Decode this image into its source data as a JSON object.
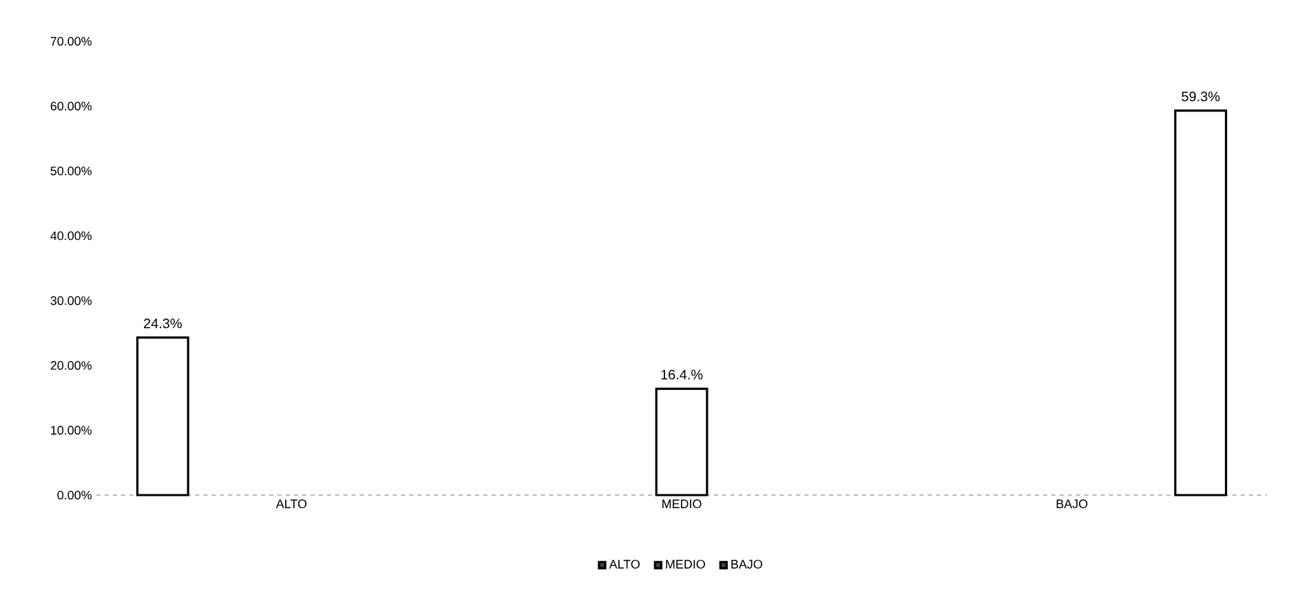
{
  "chart_data": {
    "type": "bar",
    "categories": [
      "ALTO",
      "MEDIO",
      "BAJO"
    ],
    "series": [
      {
        "name": "ALTO",
        "color": "#ffffff",
        "values": [
          24.3,
          null,
          null
        ],
        "value_labels": [
          "24.3%",
          null,
          null
        ]
      },
      {
        "name": "MEDIO",
        "color": "#ffffff",
        "values": [
          null,
          16.4,
          null
        ],
        "value_labels": [
          null,
          "16.4.%",
          null
        ]
      },
      {
        "name": "BAJO",
        "color": "#ffffff",
        "values": [
          null,
          null,
          59.3
        ],
        "value_labels": [
          null,
          null,
          "59.3%"
        ]
      }
    ],
    "ylim": [
      0,
      70
    ],
    "yticks": [
      {
        "value": 0,
        "label": "0.00%"
      },
      {
        "value": 10,
        "label": "10.00%"
      },
      {
        "value": 20,
        "label": "20.00%"
      },
      {
        "value": 30,
        "label": "30.00%"
      },
      {
        "value": 40,
        "label": "40.00%"
      },
      {
        "value": 50,
        "label": "50.00%"
      },
      {
        "value": 60,
        "label": "60.00%"
      },
      {
        "value": 70,
        "label": "70.00%"
      }
    ],
    "legend": "bottom",
    "grid": false
  }
}
